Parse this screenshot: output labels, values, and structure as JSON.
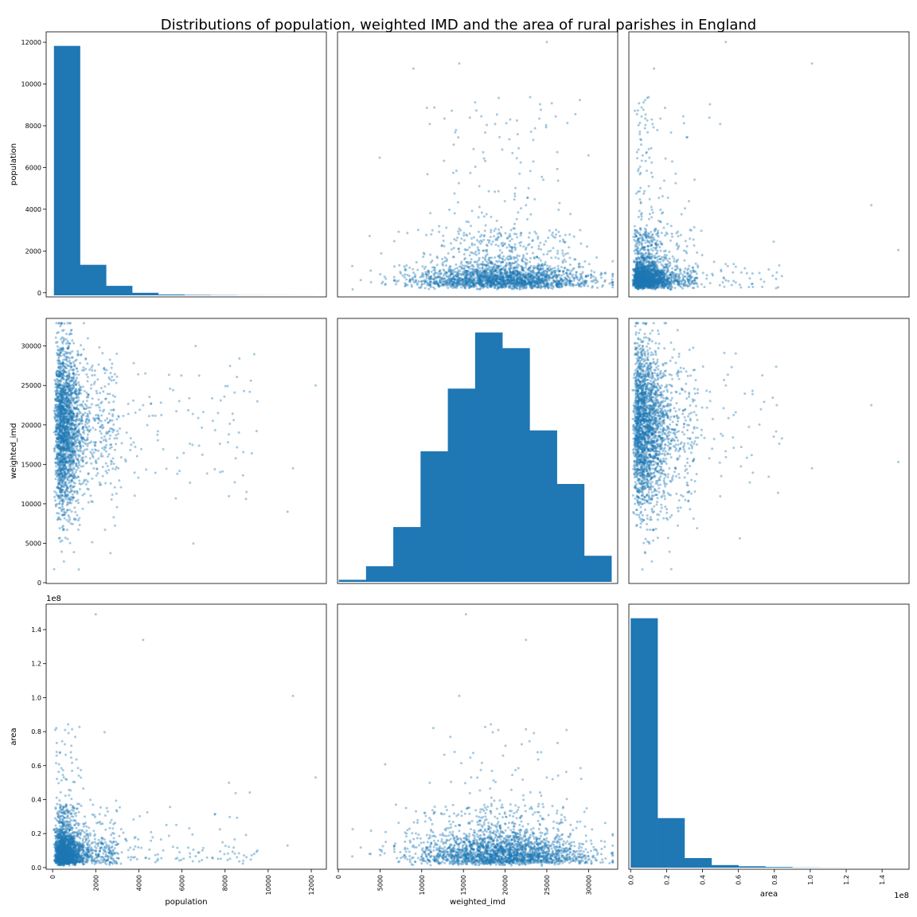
{
  "chart_data": {
    "type": "scatter-matrix",
    "title": "Distributions of population, weighted IMD and the area of rural parishes in England",
    "variables": [
      {
        "name": "population",
        "label": "population",
        "range": [
          -300,
          12700
        ],
        "ticks": [
          0,
          2000,
          4000,
          6000,
          8000,
          10000,
          12000
        ],
        "tick_labels": [
          "0",
          "2000",
          "4000",
          "6000",
          "8000",
          "10000",
          "12000"
        ],
        "offset_label": ""
      },
      {
        "name": "weighted_imd",
        "label": "weighted_imd",
        "range": [
          -100,
          33500
        ],
        "ticks": [
          0,
          5000,
          10000,
          15000,
          20000,
          25000,
          30000
        ],
        "tick_labels": [
          "0",
          "5000",
          "10000",
          "15000",
          "20000",
          "25000",
          "30000"
        ],
        "offset_label": ""
      },
      {
        "name": "area",
        "label": "area",
        "range": [
          -0.01,
          1.55
        ],
        "ticks": [
          0.0,
          0.2,
          0.4,
          0.6,
          0.8,
          1.0,
          1.2,
          1.4
        ],
        "tick_labels": [
          "0.0",
          "0.2",
          "0.4",
          "0.6",
          "0.8",
          "1.0",
          "1.2",
          "1.4"
        ],
        "offset_label": "1e8"
      }
    ],
    "histograms": [
      {
        "variable": "population",
        "bin_edges": [
          60,
          1270,
          2480,
          3690,
          4900,
          6110,
          7320,
          8530,
          9740,
          10950,
          12160
        ],
        "counts": [
          11850,
          1450,
          450,
          120,
          40,
          20,
          10,
          5,
          3,
          2
        ]
      },
      {
        "variable": "weighted_imd",
        "bin_edges": [
          50,
          3320,
          6590,
          9860,
          13130,
          16400,
          19670,
          22940,
          26210,
          29480,
          32750
        ],
        "counts": [
          80,
          600,
          2100,
          5000,
          7400,
          9550,
          8950,
          5800,
          3750,
          1000
        ]
      },
      {
        "variable": "area",
        "bin_edges": [
          0.0,
          0.15,
          0.3,
          0.45,
          0.6,
          0.75,
          0.9,
          1.05,
          1.2,
          1.35,
          1.5
        ],
        "counts": [
          14600,
          2900,
          560,
          150,
          80,
          40,
          10,
          5,
          2,
          1
        ]
      }
    ],
    "scatter": {
      "color": "#1f77b4",
      "alpha": 0.4,
      "n_points": 2400,
      "notable_points": [
        {
          "population": 12200,
          "weighted_imd": 25000,
          "area": 0.53
        },
        {
          "population": 11150,
          "weighted_imd": 14500,
          "area": 1.01
        },
        {
          "population": 10900,
          "weighted_imd": 9000,
          "area": 0.13
        },
        {
          "population": 4200,
          "weighted_imd": 22500,
          "area": 1.34
        },
        {
          "population": 2000,
          "weighted_imd": 15300,
          "area": 1.49
        },
        {
          "population": 9500,
          "weighted_imd": 23000,
          "area": 0.1
        }
      ]
    },
    "grid": false,
    "legend": "none"
  },
  "colors": {
    "bar": "#1f77b4",
    "point": "#1f77b4"
  }
}
